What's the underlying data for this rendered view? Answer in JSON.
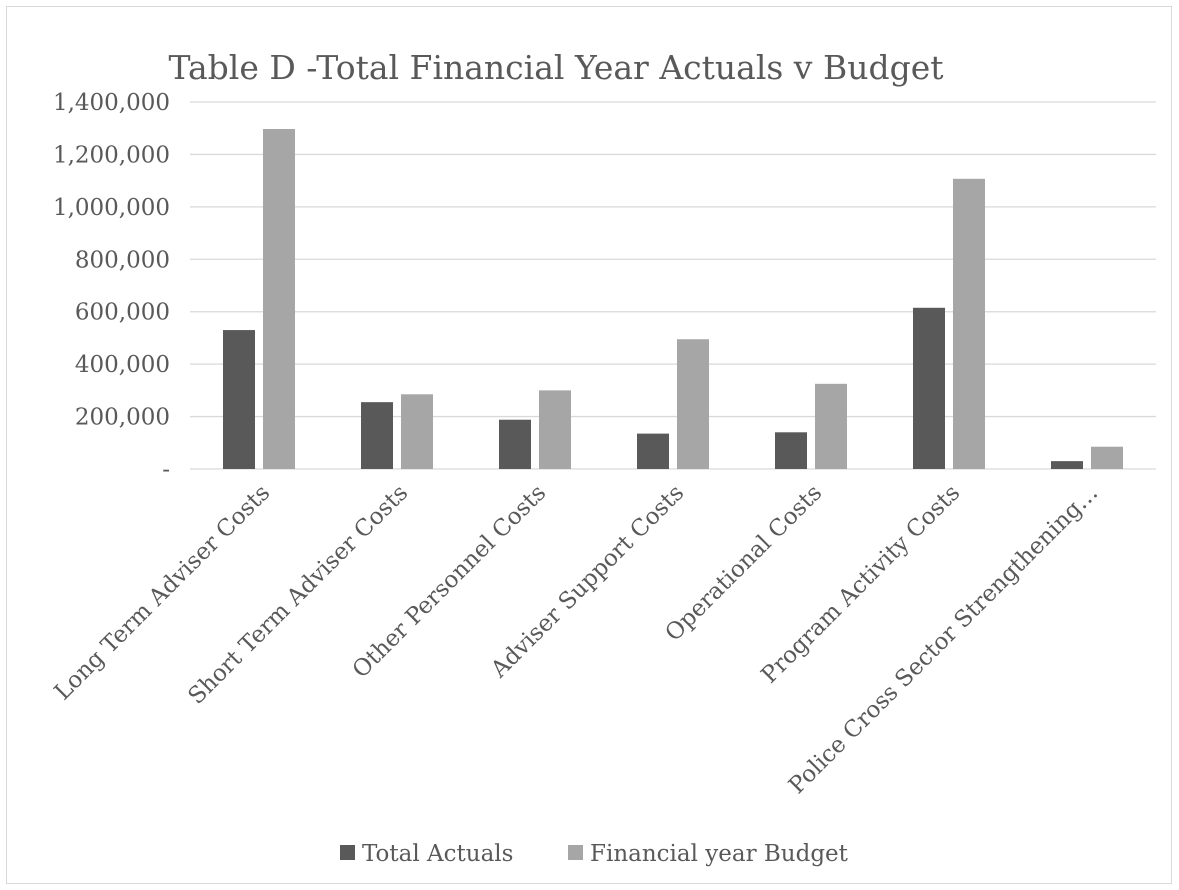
{
  "chart_data": {
    "type": "bar",
    "title": "Table D -Total Financial Year Actuals v Budget",
    "xlabel": "",
    "ylabel": "",
    "categories": [
      "Long Term Adviser Costs",
      "Short Term Adviser Costs",
      "Other Personnel Costs",
      "Adviser Support Costs",
      "Operational Costs",
      "Program Activity Costs",
      "Police Cross Sector Strengthening…"
    ],
    "series": [
      {
        "name": "Total Actuals",
        "color": "#595959",
        "values": [
          530000,
          255000,
          188000,
          135000,
          140000,
          615000,
          30000
        ]
      },
      {
        "name": "Financial year Budget",
        "color": "#a6a6a6",
        "values": [
          1297000,
          285000,
          300000,
          495000,
          325000,
          1107000,
          85000
        ]
      }
    ],
    "ylim": [
      0,
      1400000
    ],
    "yticks": [
      {
        "value": 0,
        "label": "-"
      },
      {
        "value": 200000,
        "label": "200,000"
      },
      {
        "value": 400000,
        "label": "400,000"
      },
      {
        "value": 600000,
        "label": "600,000"
      },
      {
        "value": 800000,
        "label": "800,000"
      },
      {
        "value": 1000000,
        "label": "1,000,000"
      },
      {
        "value": 1200000,
        "label": "1,200,000"
      },
      {
        "value": 1400000,
        "label": "1,400,000"
      }
    ],
    "grid": true,
    "legend_position": "bottom",
    "gridline_color": "#d9d9d9"
  }
}
